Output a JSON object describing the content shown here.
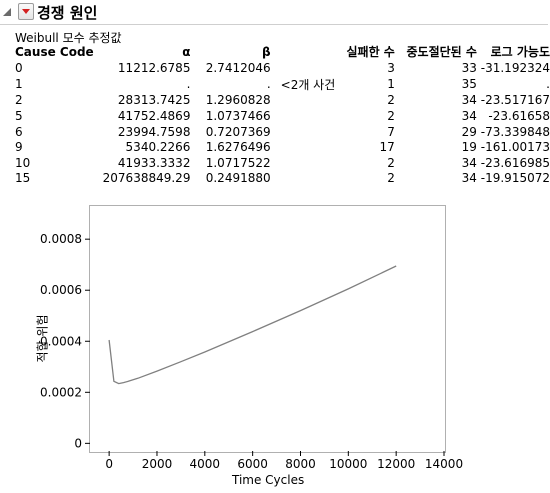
{
  "report": {
    "title": "경쟁 원인",
    "subtitle": "Weibull 모수 추정값"
  },
  "table": {
    "headers": [
      "Cause Code",
      "α",
      "β",
      "",
      "실패한 수",
      "중도절단된 수",
      "로그 가능도"
    ],
    "rows": [
      [
        "0",
        "11212.6785",
        "2.7412046",
        "",
        "3",
        "33",
        "-31.192324"
      ],
      [
        "1",
        ".",
        ".",
        "<2개 사건",
        "1",
        "35",
        "."
      ],
      [
        "2",
        "28313.7425",
        "1.2960828",
        "",
        "2",
        "34",
        "-23.517167"
      ],
      [
        "5",
        "41752.4869",
        "1.0737466",
        "",
        "2",
        "34",
        "-23.61658"
      ],
      [
        "6",
        "23994.7598",
        "0.7207369",
        "",
        "7",
        "29",
        "-73.339848"
      ],
      [
        "9",
        "5340.2266",
        "1.6276496",
        "",
        "17",
        "19",
        "-161.00173"
      ],
      [
        "10",
        "41933.3332",
        "1.0717522",
        "",
        "2",
        "34",
        "-23.616985"
      ],
      [
        "15",
        "207638849.29",
        "0.2491880",
        "",
        "2",
        "34",
        "-19.915072"
      ]
    ]
  },
  "chart_data": {
    "type": "line",
    "xlabel": "Time Cycles",
    "ylabel": "적합 위험",
    "xlim": [
      -800,
      14000
    ],
    "ylim": [
      -3e-05,
      0.00093
    ],
    "xticks": [
      0,
      2000,
      4000,
      6000,
      8000,
      10000,
      12000,
      14000
    ],
    "yticks": [
      0,
      0.0002,
      0.0004,
      0.0006,
      0.0008
    ],
    "ytick_labels": [
      "0",
      "0.0002",
      "0.0004",
      "0.0006",
      "0.0008"
    ],
    "grid": false,
    "series": [
      {
        "x": [
          0,
          200,
          400,
          600,
          800,
          1200,
          2000,
          3000,
          4000,
          6000,
          8000,
          10000,
          12000
        ],
        "y": [
          0.000405,
          0.000243,
          0.000234,
          0.000238,
          0.000243,
          0.000255,
          0.000283,
          0.00032,
          0.000358,
          0.000438,
          0.00052,
          0.000605,
          0.000695
        ]
      }
    ],
    "line_color": "#808080"
  }
}
